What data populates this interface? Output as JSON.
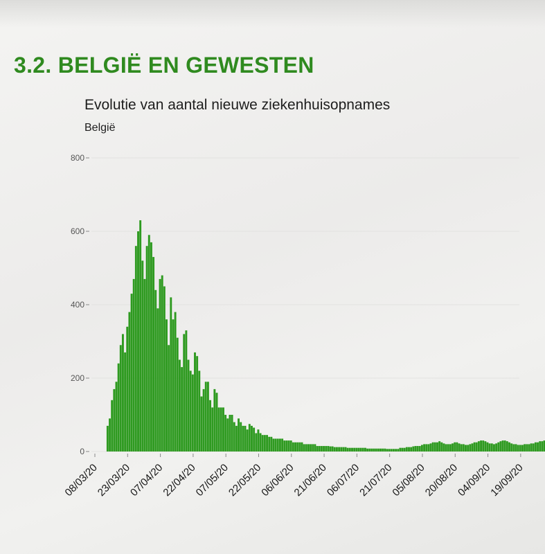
{
  "section_title": "3.2. BELGIË EN GEWESTEN",
  "colors": {
    "title": "#2f8a1f",
    "bar": "#2e9a20",
    "grid": "#e2e2e0"
  },
  "chart_data": {
    "type": "bar",
    "title": "Evolutie van aantal nieuwe ziekenhuisopnames",
    "subtitle": "België",
    "xlabel": "",
    "ylabel": "",
    "ylim": [
      0,
      800
    ],
    "yticks": [
      0,
      200,
      400,
      600,
      800
    ],
    "x_start": "2020-03-08",
    "x_tick_labels": [
      "08/03/20",
      "23/03/20",
      "07/04/20",
      "22/04/20",
      "07/05/20",
      "22/05/20",
      "06/06/20",
      "21/06/20",
      "06/07/20",
      "21/07/20",
      "05/08/20",
      "20/08/20",
      "04/09/20",
      "19/09/20"
    ],
    "grid": true,
    "values": [
      0,
      0,
      0,
      0,
      0,
      0,
      70,
      90,
      140,
      170,
      190,
      240,
      290,
      320,
      270,
      340,
      380,
      430,
      470,
      560,
      600,
      630,
      520,
      470,
      560,
      590,
      570,
      530,
      440,
      390,
      470,
      480,
      450,
      360,
      290,
      420,
      360,
      380,
      310,
      250,
      230,
      320,
      330,
      250,
      220,
      210,
      270,
      260,
      220,
      150,
      170,
      190,
      190,
      140,
      120,
      170,
      160,
      120,
      120,
      120,
      100,
      90,
      100,
      100,
      80,
      70,
      90,
      80,
      70,
      70,
      60,
      75,
      70,
      65,
      50,
      60,
      50,
      45,
      45,
      45,
      40,
      40,
      35,
      35,
      35,
      35,
      35,
      30,
      30,
      30,
      30,
      25,
      25,
      25,
      25,
      25,
      20,
      20,
      20,
      20,
      20,
      20,
      15,
      15,
      15,
      15,
      15,
      15,
      14,
      14,
      12,
      12,
      12,
      12,
      12,
      12,
      10,
      10,
      10,
      10,
      10,
      10,
      10,
      10,
      10,
      8,
      8,
      8,
      8,
      8,
      8,
      8,
      8,
      8,
      7,
      7,
      7,
      7,
      7,
      7,
      10,
      10,
      10,
      12,
      12,
      12,
      14,
      15,
      15,
      15,
      18,
      20,
      20,
      20,
      22,
      25,
      25,
      25,
      28,
      25,
      22,
      20,
      20,
      20,
      22,
      25,
      25,
      22,
      20,
      20,
      18,
      18,
      20,
      22,
      25,
      25,
      28,
      30,
      30,
      28,
      25,
      22,
      22,
      20,
      22,
      25,
      28,
      30,
      30,
      28,
      25,
      22,
      20,
      20,
      18,
      18,
      18,
      20,
      20,
      20,
      22,
      22,
      25,
      25,
      28,
      28,
      30,
      32,
      35,
      38,
      40,
      42,
      45,
      48,
      50,
      50
    ]
  }
}
